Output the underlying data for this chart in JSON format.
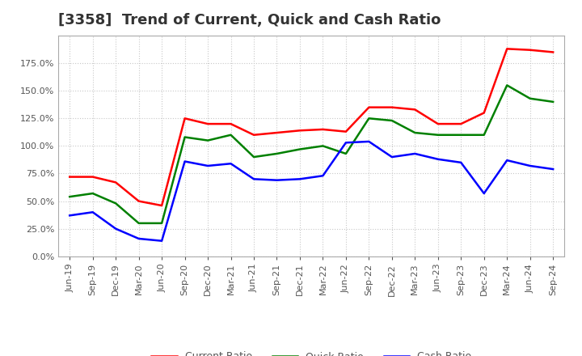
{
  "title": "[3358]  Trend of Current, Quick and Cash Ratio",
  "x_labels": [
    "Jun-19",
    "Sep-19",
    "Dec-19",
    "Mar-20",
    "Jun-20",
    "Sep-20",
    "Dec-20",
    "Mar-21",
    "Jun-21",
    "Sep-21",
    "Dec-21",
    "Mar-22",
    "Jun-22",
    "Sep-22",
    "Dec-22",
    "Mar-23",
    "Jun-23",
    "Sep-23",
    "Dec-23",
    "Mar-24",
    "Jun-24",
    "Sep-24"
  ],
  "current_ratio": [
    72,
    72,
    67,
    50,
    46,
    125,
    120,
    120,
    110,
    112,
    114,
    115,
    113,
    135,
    135,
    133,
    120,
    120,
    130,
    188,
    187,
    185
  ],
  "quick_ratio": [
    54,
    57,
    48,
    30,
    30,
    108,
    105,
    110,
    90,
    93,
    97,
    100,
    93,
    125,
    123,
    112,
    110,
    110,
    110,
    155,
    143,
    140
  ],
  "cash_ratio": [
    37,
    40,
    25,
    16,
    14,
    86,
    82,
    84,
    70,
    69,
    70,
    73,
    103,
    104,
    90,
    93,
    88,
    85,
    57,
    87,
    82,
    79
  ],
  "current_color": "#FF0000",
  "quick_color": "#008000",
  "cash_color": "#0000FF",
  "ylim_min": 0,
  "ylim_max": 200,
  "yticks": [
    0,
    25,
    50,
    75,
    100,
    125,
    150,
    175
  ],
  "background_color": "#ffffff",
  "grid_color": "#c8c8c8",
  "title_fontsize": 13,
  "tick_fontsize": 8,
  "legend_fontsize": 9
}
